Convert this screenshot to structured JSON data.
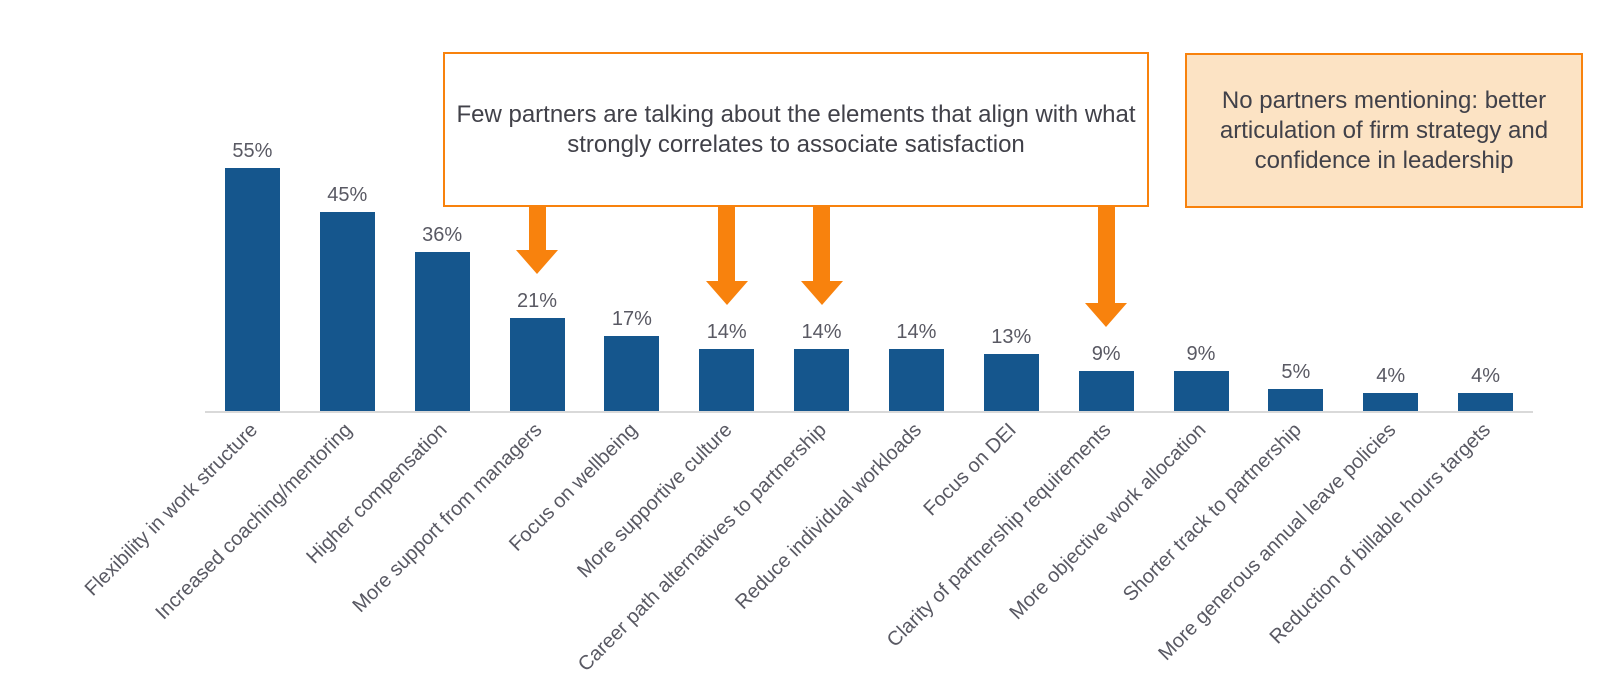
{
  "chart_data": {
    "type": "bar",
    "title": "",
    "xlabel": "",
    "ylabel": "",
    "ylim": [
      0,
      60
    ],
    "grid": false,
    "legend": null,
    "categories": [
      "Flexibility in work structure",
      "Increased coaching/mentoring",
      "Higher compensation",
      "More support from managers",
      "Focus on wellbeing",
      "More supportive culture",
      "Career path alternatives to partnership",
      "Reduce individual workloads",
      "Focus on DEI",
      "Clarity of partnership requirements",
      "More objective work allocation",
      "Shorter track to partnership",
      "More generous annual leave policies",
      "Reduction of billable hours targets"
    ],
    "values": [
      55,
      45,
      36,
      21,
      17,
      14,
      14,
      14,
      13,
      9,
      9,
      5,
      4,
      4
    ],
    "value_labels": [
      "55%",
      "45%",
      "36%",
      "21%",
      "17%",
      "14%",
      "14%",
      "14%",
      "13%",
      "9%",
      "9%",
      "5%",
      "4%",
      "4%"
    ],
    "bar_color": "#15568D",
    "value_label_color": "#595963",
    "category_label_color": "#595963",
    "axis_line_color": "#D9D9D9"
  },
  "callout": {
    "text": "Few partners are talking about the elements that align with what strongly correlates to associate satisfaction",
    "bg_color": "#FFFFFF",
    "border_color": "#F8820D",
    "text_color": "#414149",
    "arrows": {
      "color": "#F8820D",
      "targets": [
        "More support from managers",
        "More supportive culture",
        "Career path alternatives to partnership",
        "Clarity of partnership requirements"
      ]
    }
  },
  "side_note": {
    "text": "No partners mentioning: better articulation of firm strategy and confidence in leadership",
    "bg_color": "#FCE3C4",
    "border_color": "#F8820D",
    "text_color": "#414149"
  }
}
